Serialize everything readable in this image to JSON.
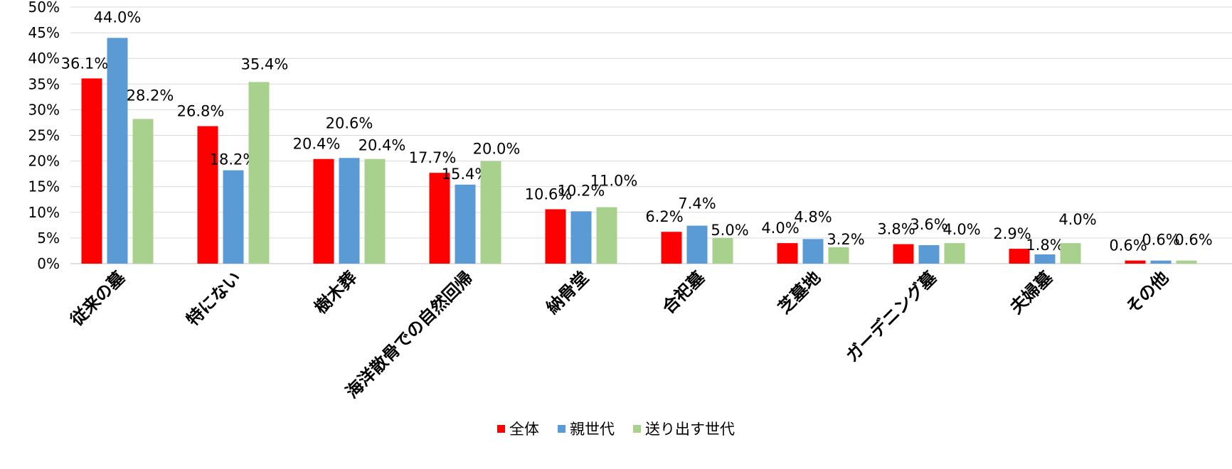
{
  "chart_data": {
    "type": "bar",
    "categories": [
      "従来の墓",
      "特にない",
      "樹木葬",
      "海洋散骨での自然回帰",
      "納骨堂",
      "合祀墓",
      "芝墓地",
      "ガーデニング墓",
      "夫婦墓",
      "その他"
    ],
    "series": [
      {
        "name": "全体",
        "color": "#ff0000",
        "values": [
          36.1,
          26.8,
          20.4,
          17.7,
          10.6,
          6.2,
          4.0,
          3.8,
          2.9,
          0.6
        ]
      },
      {
        "name": "親世代",
        "color": "#5b9bd5",
        "values": [
          44.0,
          18.2,
          20.6,
          15.4,
          10.2,
          7.4,
          4.8,
          3.6,
          1.8,
          0.6
        ]
      },
      {
        "name": "送り出す世代",
        "color": "#a9d18e",
        "values": [
          28.2,
          35.4,
          20.4,
          20.0,
          11.0,
          5.0,
          3.2,
          4.0,
          4.0,
          0.6
        ]
      }
    ],
    "data_labels": [
      [
        "36.1%",
        "26.8%",
        "20.4%",
        "17.7%",
        "10.6%",
        "6.2%",
        "4.0%",
        "3.8%",
        "2.9%",
        "0.6%"
      ],
      [
        "44.0%",
        "18.2%",
        "20.6%",
        "15.4%",
        "10.2%",
        "7.4%",
        "4.8%",
        "3.6%",
        "1.8%",
        "0.6%"
      ],
      [
        "28.2%",
        "35.4%",
        "20.4%",
        "20.0%",
        "11.0%",
        "5.0%",
        "3.2%",
        "4.0%",
        "4.0%",
        "0.6%"
      ]
    ],
    "y_ticks": [
      "0%",
      "5%",
      "10%",
      "15%",
      "20%",
      "25%",
      "30%",
      "35%",
      "40%",
      "45%",
      "50%"
    ],
    "ylim": [
      0,
      50
    ],
    "grid": true,
    "legend_position": "bottom"
  }
}
